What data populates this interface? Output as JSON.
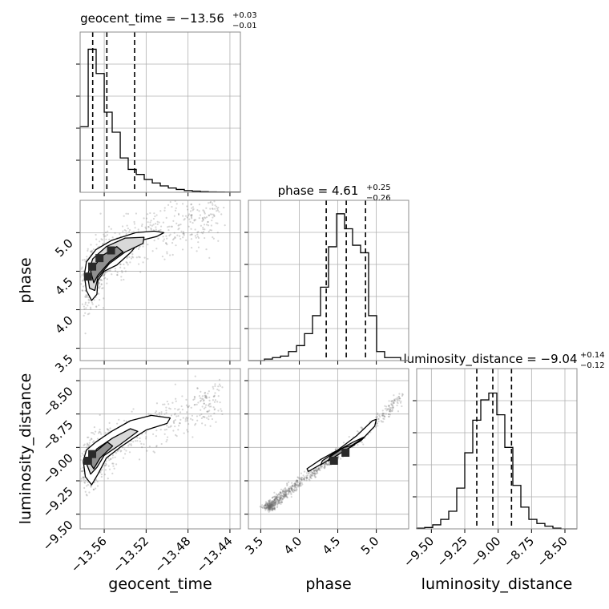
{
  "chart_data": {
    "type": "corner",
    "parameters": [
      "geocent_time",
      "phase",
      "luminosity_distance"
    ],
    "titles": [
      {
        "param": "geocent_time",
        "main": "geocent_time = −13.56",
        "sup": "+0.03",
        "sub": "−0.01"
      },
      {
        "param": "phase",
        "main": "phase = 4.61",
        "sup": "+0.25",
        "sub": "−0.26"
      },
      {
        "param": "luminosity_distance",
        "main": "luminosity_distance = −9.04",
        "sup": "+0.14",
        "sub": "−0.12"
      }
    ],
    "axis_labels": {
      "geocent_time": "geocent_time",
      "phase": "phase",
      "luminosity_distance": "luminosity_distance"
    },
    "ranges": {
      "geocent_time": [
        -13.583,
        -13.43
      ],
      "phase": [
        3.34,
        5.42
      ],
      "luminosity_distance": [
        -9.61,
        -8.41
      ]
    },
    "ticks": {
      "geocent_time": {
        "values": [
          -13.56,
          -13.52,
          -13.48,
          -13.44
        ],
        "labels": [
          "−13.56",
          "−13.52",
          "−13.48",
          "−13.44"
        ]
      },
      "phase": {
        "values": [
          3.5,
          4.0,
          4.5,
          5.0
        ],
        "labels": [
          "3.5",
          "4.0",
          "4.5",
          "5.0"
        ]
      },
      "luminosity_distance": {
        "values": [
          -9.5,
          -9.25,
          -9.0,
          -8.75,
          -8.5
        ],
        "labels": [
          "−9.50",
          "−9.25",
          "−9.00",
          "−8.75",
          "−8.50"
        ]
      }
    },
    "quantiles": {
      "geocent_time": [
        -13.571,
        -13.5575,
        -13.531
      ],
      "phase": [
        4.35,
        4.61,
        4.86
      ],
      "luminosity_distance": [
        -9.16,
        -9.04,
        -8.9
      ]
    },
    "histograms": {
      "geocent_time": {
        "edges": [
          -13.583,
          -13.5753,
          -13.5677,
          -13.56,
          -13.5524,
          -13.5447,
          -13.5371,
          -13.5294,
          -13.5218,
          -13.5141,
          -13.5065,
          -13.4988,
          -13.4912,
          -13.4835,
          -13.4759,
          -13.4682,
          -13.4606,
          -13.4529,
          -13.4453,
          -13.4376,
          -13.43
        ],
        "counts": [
          0.46,
          1.0,
          0.83,
          0.56,
          0.42,
          0.24,
          0.16,
          0.125,
          0.09,
          0.065,
          0.045,
          0.03,
          0.02,
          0.012,
          0.008,
          0.005,
          0.003,
          0.002,
          0.001,
          0.001
        ]
      },
      "phase": {
        "edges": [
          3.34,
          3.444,
          3.548,
          3.652,
          3.756,
          3.86,
          3.964,
          4.068,
          4.172,
          4.276,
          4.38,
          4.484,
          4.588,
          4.692,
          4.796,
          4.9,
          5.004,
          5.108,
          5.212,
          5.316,
          5.42
        ],
        "counts": [
          0.0,
          0.0,
          0.01,
          0.02,
          0.03,
          0.06,
          0.1,
          0.18,
          0.3,
          0.49,
          0.76,
          0.98,
          0.88,
          0.77,
          0.72,
          0.3,
          0.06,
          0.02,
          0.02,
          0.0
        ]
      },
      "luminosity_distance": {
        "edges": [
          -9.61,
          -9.55,
          -9.49,
          -9.43,
          -9.37,
          -9.31,
          -9.25,
          -9.19,
          -9.13,
          -9.07,
          -9.01,
          -8.95,
          -8.89,
          -8.83,
          -8.77,
          -8.71,
          -8.65,
          -8.59,
          -8.53,
          -8.47,
          -8.41
        ],
        "counts": [
          0.005,
          0.01,
          0.03,
          0.07,
          0.13,
          0.3,
          0.56,
          0.8,
          0.95,
          1.0,
          0.84,
          0.6,
          0.32,
          0.16,
          0.07,
          0.04,
          0.02,
          0.005,
          0.0,
          0.0
        ]
      }
    },
    "histogram_ylim": {
      "geocent_time": [
        0,
        1.12
      ],
      "phase": [
        0,
        1.07
      ],
      "luminosity_distance": [
        0,
        1.18
      ]
    },
    "pairs": [
      {
        "x": "geocent_time",
        "y": "phase",
        "scatter_center": [
          [
            -13.575,
            4.35
          ],
          [
            -13.565,
            4.55
          ],
          [
            -13.55,
            4.75
          ],
          [
            -13.53,
            4.95
          ],
          [
            -13.5,
            5.05
          ],
          [
            -13.47,
            5.15
          ],
          [
            -13.45,
            5.3
          ]
        ],
        "scatter_spread": [
          0.006,
          0.35
        ],
        "contours": [
          [
            [
              -13.579,
              4.45
            ],
            [
              -13.577,
              4.25
            ],
            [
              -13.572,
              4.12
            ],
            [
              -13.567,
              4.2
            ],
            [
              -13.566,
              4.38
            ],
            [
              -13.56,
              4.5
            ],
            [
              -13.548,
              4.58
            ],
            [
              -13.535,
              4.74
            ],
            [
              -13.525,
              4.9
            ],
            [
              -13.51,
              4.95
            ],
            [
              -13.503,
              5.0
            ],
            [
              -13.512,
              5.02
            ],
            [
              -13.53,
              5.0
            ],
            [
              -13.553,
              4.9
            ],
            [
              -13.568,
              4.78
            ],
            [
              -13.577,
              4.62
            ]
          ],
          [
            [
              -13.576,
              4.45
            ],
            [
              -13.574,
              4.28
            ],
            [
              -13.569,
              4.25
            ],
            [
              -13.566,
              4.42
            ],
            [
              -13.555,
              4.6
            ],
            [
              -13.54,
              4.75
            ],
            [
              -13.523,
              4.86
            ],
            [
              -13.522,
              4.94
            ],
            [
              -13.54,
              4.93
            ],
            [
              -13.558,
              4.82
            ],
            [
              -13.571,
              4.66
            ]
          ],
          [
            [
              -13.573,
              4.5
            ],
            [
              -13.57,
              4.35
            ],
            [
              -13.566,
              4.45
            ],
            [
              -13.555,
              4.62
            ],
            [
              -13.542,
              4.75
            ],
            [
              -13.548,
              4.82
            ],
            [
              -13.562,
              4.7
            ]
          ]
        ],
        "cores": [
          [
            -13.5755,
            4.43
          ],
          [
            -13.5715,
            4.56
          ],
          [
            -13.5645,
            4.67
          ],
          [
            -13.5535,
            4.77
          ]
        ]
      },
      {
        "x": "geocent_time",
        "y": "luminosity_distance",
        "scatter_center": [
          [
            -13.575,
            -9.15
          ],
          [
            -13.565,
            -9.05
          ],
          [
            -13.55,
            -8.98
          ],
          [
            -13.53,
            -8.9
          ],
          [
            -13.5,
            -8.8
          ],
          [
            -13.47,
            -8.7
          ],
          [
            -13.45,
            -8.6
          ]
        ],
        "scatter_spread": [
          0.006,
          0.16
        ],
        "contours": [
          [
            [
              -13.58,
              -9.1
            ],
            [
              -13.578,
              -9.22
            ],
            [
              -13.572,
              -9.28
            ],
            [
              -13.566,
              -9.2
            ],
            [
              -13.558,
              -9.08
            ],
            [
              -13.545,
              -9.0
            ],
            [
              -13.532,
              -8.93
            ],
            [
              -13.52,
              -8.87
            ],
            [
              -13.5,
              -8.82
            ],
            [
              -13.497,
              -8.78
            ],
            [
              -13.515,
              -8.76
            ],
            [
              -13.535,
              -8.8
            ],
            [
              -13.553,
              -8.88
            ],
            [
              -13.568,
              -8.96
            ],
            [
              -13.577,
              -9.02
            ]
          ],
          [
            [
              -13.577,
              -9.12
            ],
            [
              -13.573,
              -9.2
            ],
            [
              -13.567,
              -9.15
            ],
            [
              -13.56,
              -9.06
            ],
            [
              -13.545,
              -8.98
            ],
            [
              -13.528,
              -8.88
            ],
            [
              -13.535,
              -8.86
            ],
            [
              -13.552,
              -8.93
            ],
            [
              -13.567,
              -9.01
            ]
          ],
          [
            [
              -13.575,
              -9.1
            ],
            [
              -13.57,
              -9.16
            ],
            [
              -13.564,
              -9.08
            ],
            [
              -13.552,
              -8.99
            ],
            [
              -13.557,
              -8.96
            ],
            [
              -13.568,
              -9.03
            ]
          ]
        ],
        "cores": [
          [
            -13.5755,
            -9.1
          ],
          [
            -13.5715,
            -9.05
          ]
        ]
      },
      {
        "x": "phase",
        "y": "luminosity_distance",
        "scatter_center": [
          [
            3.6,
            -9.45
          ],
          [
            3.9,
            -9.3
          ],
          [
            4.2,
            -9.18
          ],
          [
            4.5,
            -9.05
          ],
          [
            4.8,
            -8.92
          ],
          [
            5.1,
            -8.75
          ],
          [
            5.35,
            -8.6
          ]
        ],
        "scatter_spread": [
          0.06,
          0.03
        ],
        "contours": [
          [
            [
              4.12,
              -9.18
            ],
            [
              4.3,
              -9.12
            ],
            [
              4.55,
              -9.03
            ],
            [
              4.8,
              -8.95
            ],
            [
              4.98,
              -8.84
            ],
            [
              5.0,
              -8.79
            ],
            [
              4.95,
              -8.8
            ],
            [
              4.75,
              -8.91
            ],
            [
              4.5,
              -9.02
            ],
            [
              4.28,
              -9.09
            ],
            [
              4.1,
              -9.16
            ]
          ],
          [
            [
              4.28,
              -9.13
            ],
            [
              4.5,
              -9.05
            ],
            [
              4.75,
              -8.96
            ],
            [
              4.85,
              -8.92
            ],
            [
              4.7,
              -8.96
            ],
            [
              4.48,
              -9.03
            ],
            [
              4.3,
              -9.1
            ]
          ],
          [
            [
              4.38,
              -9.1
            ],
            [
              4.6,
              -9.02
            ],
            [
              4.72,
              -8.98
            ],
            [
              4.58,
              -9.0
            ],
            [
              4.4,
              -9.07
            ]
          ]
        ],
        "cores": [
          [
            4.45,
            -9.1
          ],
          [
            4.6,
            -9.04
          ]
        ]
      }
    ],
    "grid": true,
    "colors": {
      "line": "#000000",
      "grid": "#b0b0b0",
      "scatter": "#6b6b6b",
      "fill_outer": "#ffffff",
      "fill_mid": "#d8d8d8",
      "fill_inner": "#8f8f8f",
      "fill_core": "#2a2a2a"
    }
  }
}
